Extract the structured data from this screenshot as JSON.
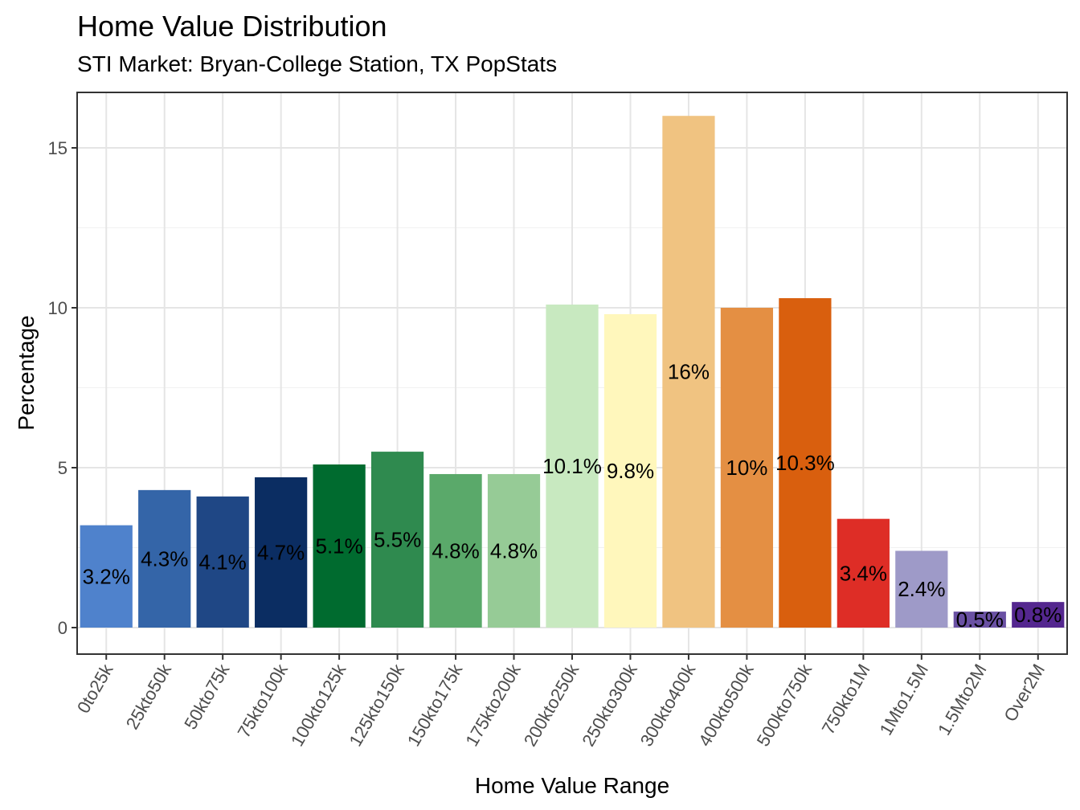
{
  "chart_data": {
    "type": "bar",
    "title": "Home Value Distribution",
    "subtitle": "STI Market: Bryan-College Station, TX PopStats",
    "xlabel": "Home Value Range",
    "ylabel": "Percentage",
    "ylim": [
      0,
      16.5
    ],
    "yticks": [
      0,
      5,
      10,
      15
    ],
    "grid": true,
    "legend": "none",
    "categories": [
      "0to25k",
      "25kto50k",
      "50kto75k",
      "75kto100k",
      "100kto125k",
      "125kto150k",
      "150kto175k",
      "175kto200k",
      "200kto250k",
      "250kto300k",
      "300kto400k",
      "400kto500k",
      "500kto750k",
      "750kto1M",
      "1Mto1.5M",
      "1.5Mto2M",
      "Over2M"
    ],
    "values": [
      3.2,
      4.3,
      4.1,
      4.7,
      5.1,
      5.5,
      4.8,
      4.8,
      10.1,
      9.8,
      16,
      10,
      10.3,
      3.4,
      2.4,
      0.5,
      0.8
    ],
    "labels": [
      "3.2%",
      "4.3%",
      "4.1%",
      "4.7%",
      "5.1%",
      "5.5%",
      "4.8%",
      "4.8%",
      "10.1%",
      "9.8%",
      "16%",
      "10%",
      "10.3%",
      "3.4%",
      "2.4%",
      "0.5%",
      "0.8%"
    ],
    "colors": [
      "#4f82cc",
      "#3465a8",
      "#1f4785",
      "#0b2d62",
      "#006b2f",
      "#2f8a4f",
      "#5aa96a",
      "#96cb96",
      "#c8e9c0",
      "#fff7bc",
      "#f0c381",
      "#e48f43",
      "#d95f0e",
      "#de2d26",
      "#9e9ac8",
      "#6a51a3",
      "#54278f"
    ]
  }
}
